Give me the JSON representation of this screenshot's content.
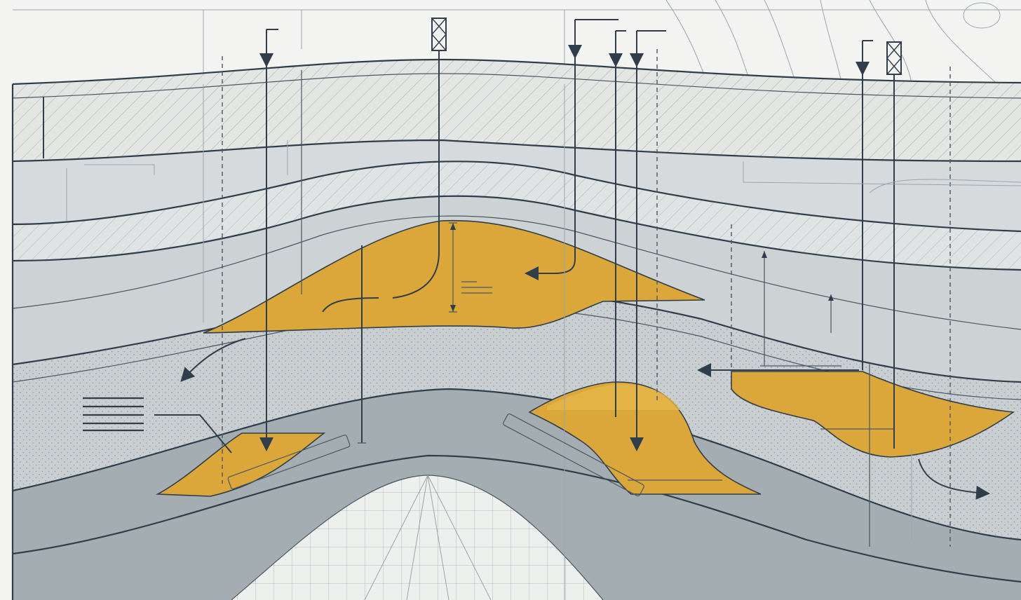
{
  "colors": {
    "background": "#f3f4f1",
    "line": "#2f3e4a",
    "hatch_fill": "#e4e6e4",
    "layer_light": "#d6dadc",
    "layer_mid": "#cdd2d5",
    "layer_sand": "#c4cacd",
    "layer_dark": "#a4adb2",
    "reservoir": "#dba63a",
    "reservoir_light": "#e6b64a"
  },
  "icons": {
    "wellhead": "wellhead-icon",
    "flow_arrow": "arrow-icon",
    "legend": "text-lines-icon"
  }
}
